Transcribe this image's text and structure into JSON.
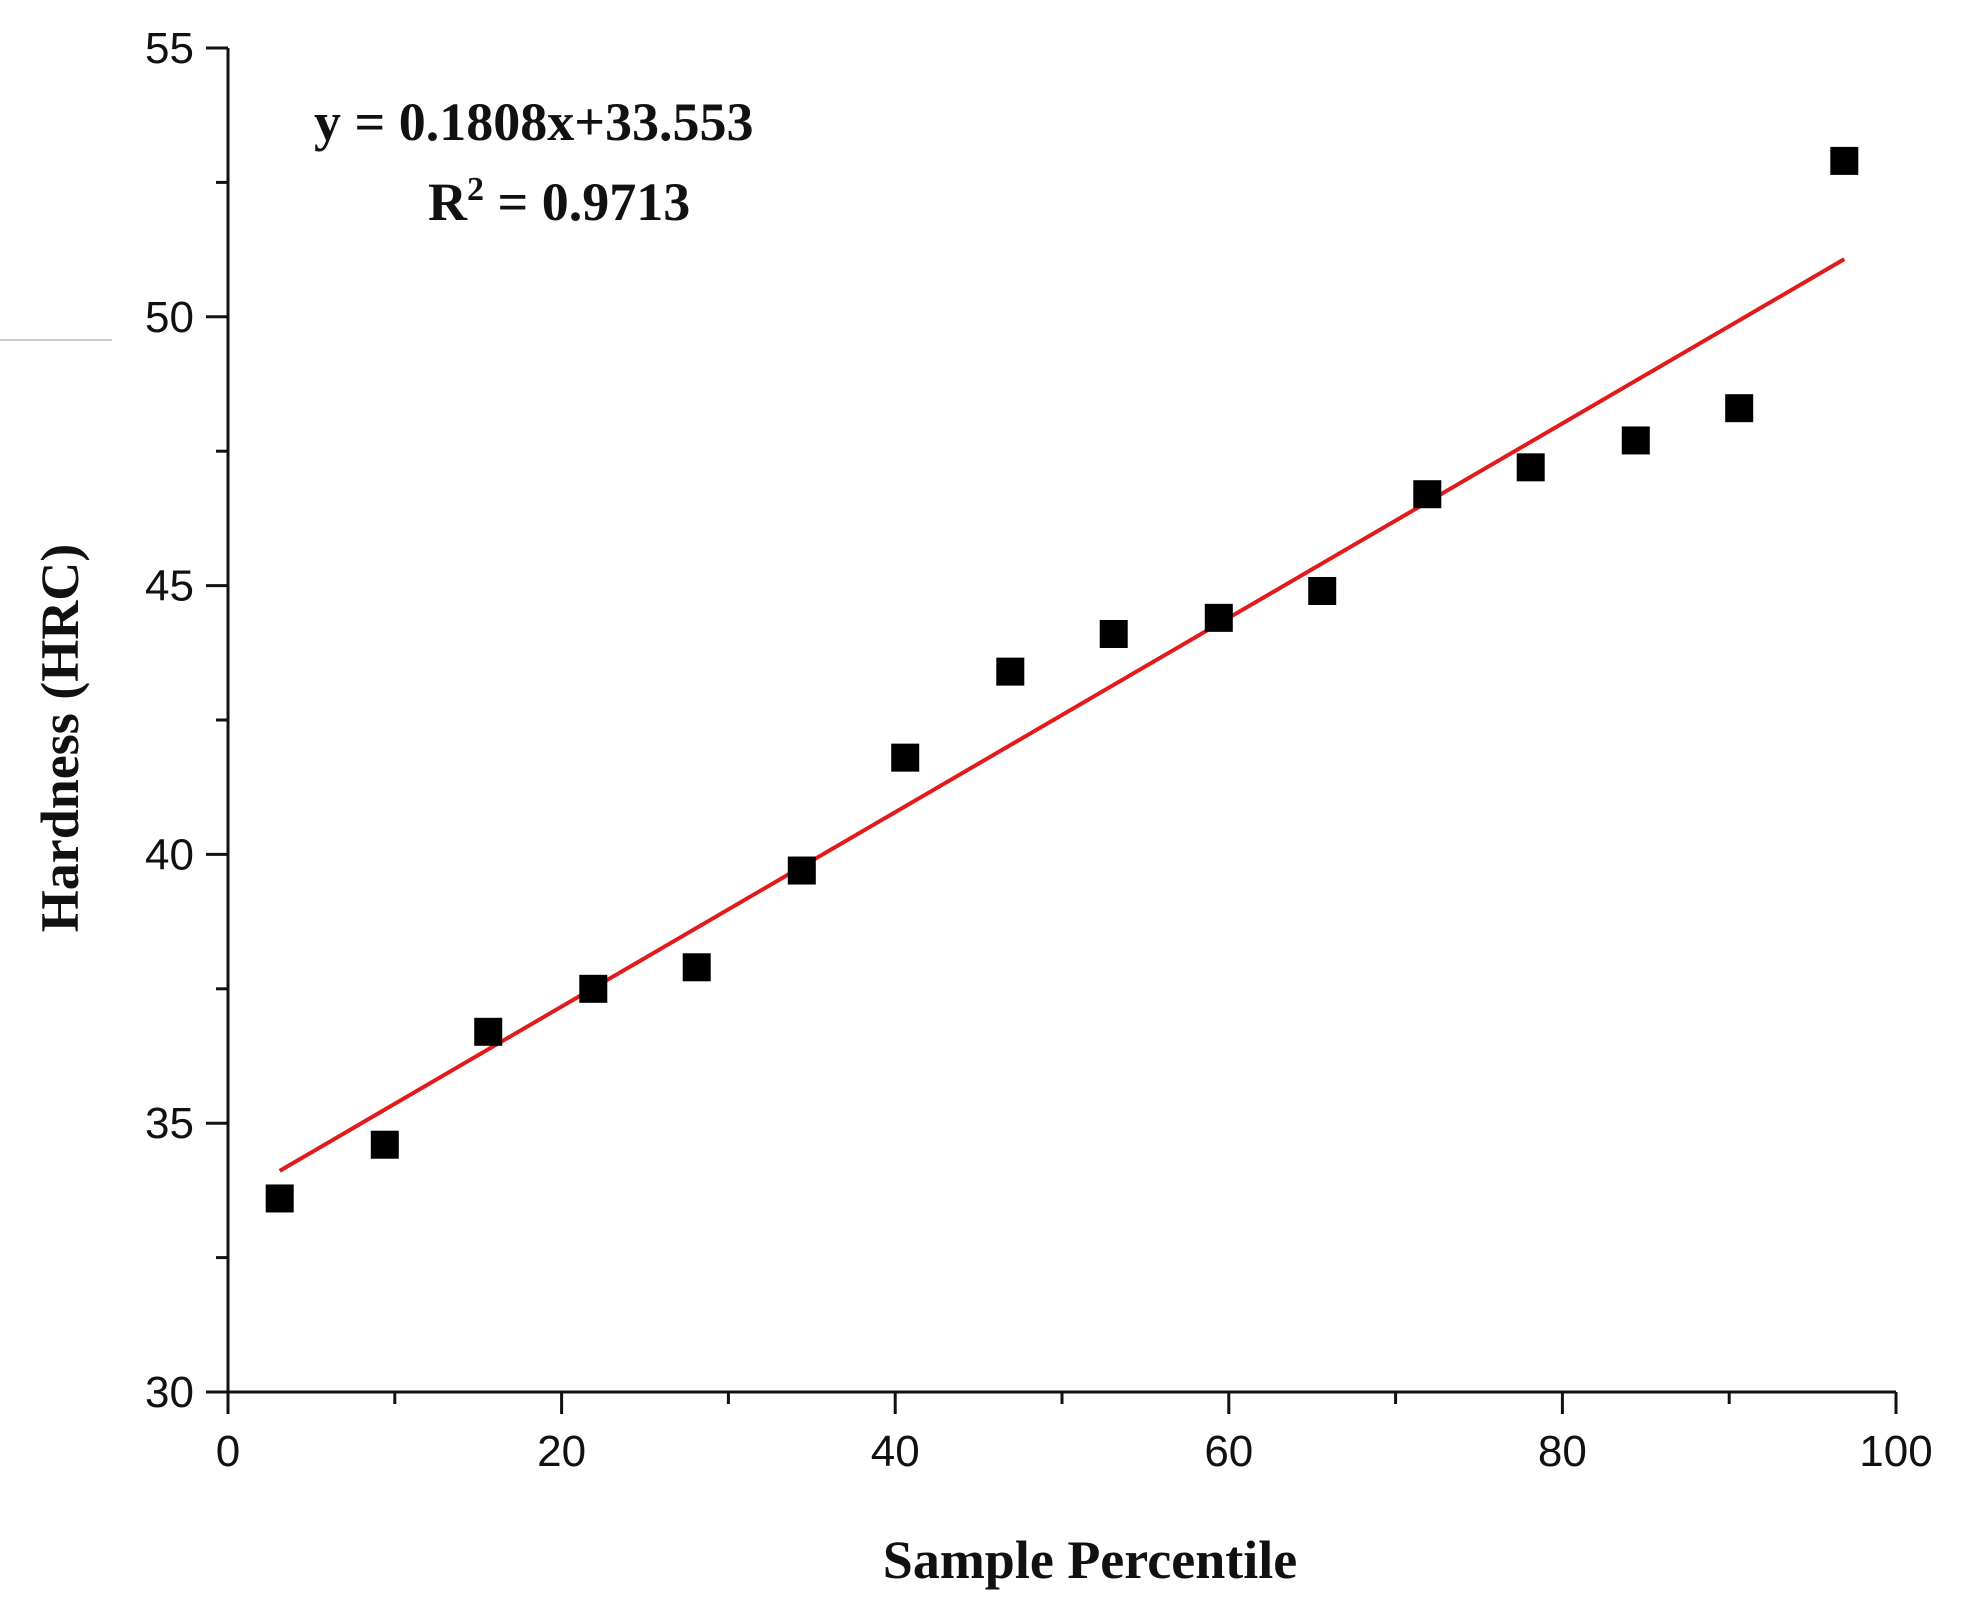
{
  "chart_data": {
    "type": "scatter",
    "title": "",
    "xlabel": "Sample Percentile",
    "ylabel": "Hardness (HRC)",
    "xlim": [
      0,
      100
    ],
    "ylim": [
      30,
      55
    ],
    "x_ticks": [
      0,
      20,
      40,
      60,
      80,
      100
    ],
    "y_ticks": [
      30,
      35,
      40,
      45,
      50,
      55
    ],
    "x_minor_step": 10,
    "y_minor_step": 2.5,
    "series": [
      {
        "name": "Hardness",
        "marker": "square",
        "color": "#000000",
        "x": [
          3.1,
          9.4,
          15.6,
          21.9,
          28.1,
          34.4,
          40.6,
          46.9,
          53.1,
          59.4,
          65.6,
          71.9,
          78.1,
          84.4,
          90.6,
          96.9
        ],
        "y": [
          33.6,
          34.6,
          36.7,
          37.5,
          37.9,
          39.7,
          41.8,
          43.4,
          44.1,
          44.4,
          44.9,
          46.7,
          47.2,
          47.7,
          48.3,
          52.9
        ]
      }
    ],
    "fit": {
      "type": "linear",
      "slope": 0.1808,
      "intercept": 33.553,
      "x_range": [
        3.1,
        96.9
      ],
      "color": "#e31a1c"
    },
    "annotations": {
      "equation": "y = 0.1808x+33.553",
      "r2_prefix": "R",
      "r2_superscript": "2",
      "r2_value": " = 0.9713"
    },
    "grid": false,
    "legend": "none"
  }
}
